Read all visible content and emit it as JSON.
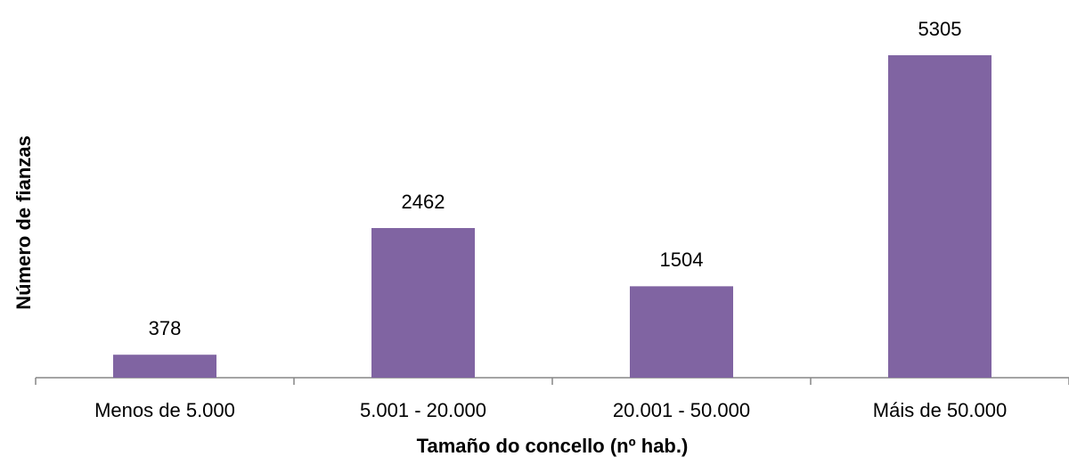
{
  "chart_data": {
    "type": "bar",
    "x_label": "Tamaño do concello (nº hab.)",
    "y_label": "Número de fianzas",
    "categories": [
      "Menos de 5.000",
      "5.001 - 20.000",
      "20.001 - 50.000",
      "Máis de 50.000"
    ],
    "values": [
      378,
      2462,
      1504,
      5305
    ],
    "color": "#8064a2",
    "ylim": [
      0,
      6000
    ],
    "grid": false
  }
}
